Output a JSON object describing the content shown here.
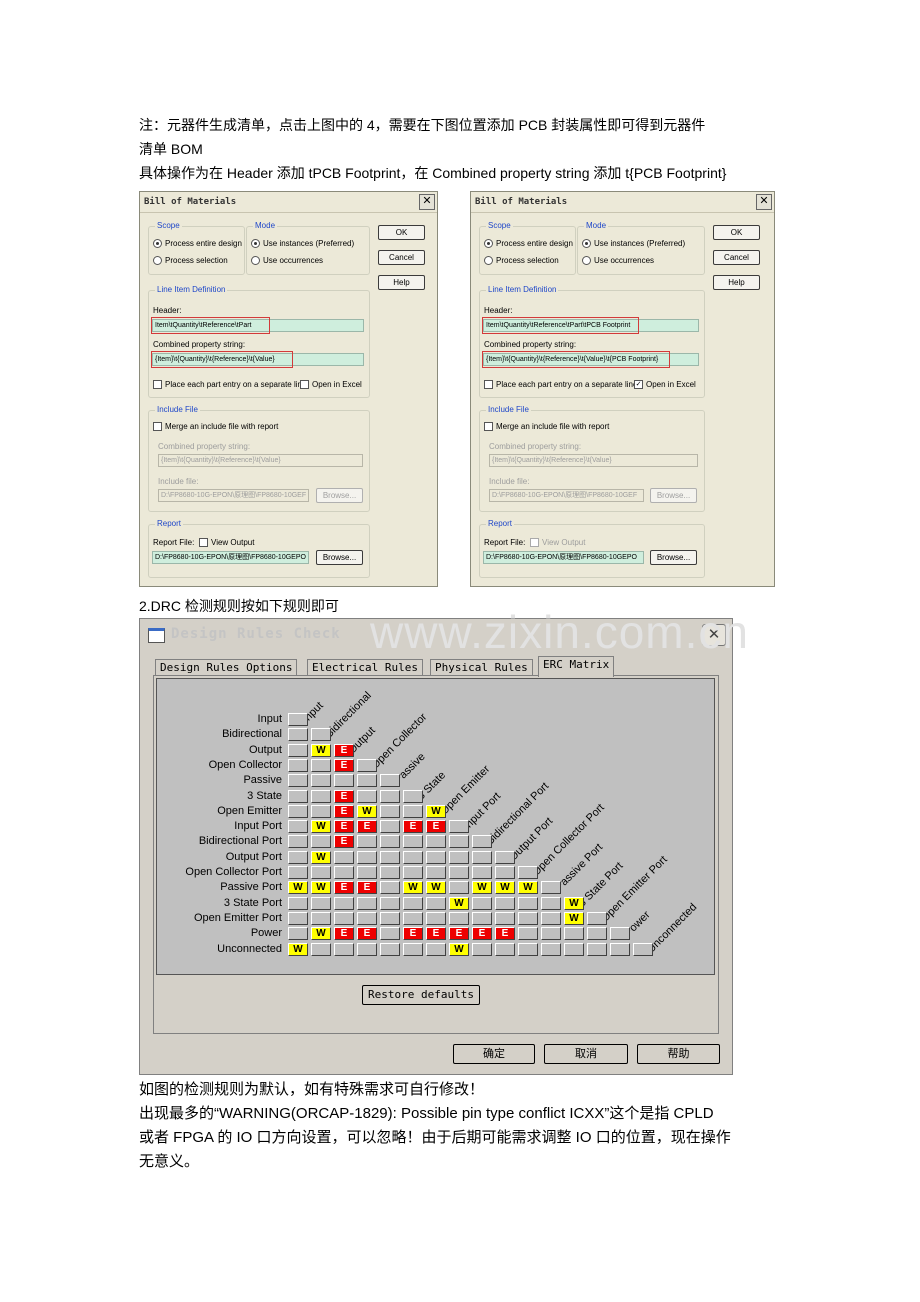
{
  "note_lines": [
    "注：元器件生成清单，点击上图中的 4，需要在下图位置添加 PCB 封装属性即可得到元器件",
    "清单 BOM",
    "具体操作为在 Header 添加 tPCB Footprint，在 Combined property string 添加 t{PCB Footprint}"
  ],
  "bom_left": {
    "title": "Bill of Materials",
    "scope_label": "Scope",
    "scope_opt1": "Process entire design",
    "scope_opt2": "Process selection",
    "mode_label": "Mode",
    "mode_opt1": "Use instances (Preferred)",
    "mode_opt2": "Use occurrences",
    "ok": "OK",
    "cancel": "Cancel",
    "help": "Help",
    "line_item_label": "Line Item Definition",
    "header_label": "Header:",
    "header_value": "Item\\tQuantity\\tReference\\tPart",
    "combined_label": "Combined property string:",
    "combined_value": "{Item}\\t{Quantity}\\t{Reference}\\t{Value}",
    "place_each": "Place each part entry on a separate line",
    "open_excel": "Open in Excel",
    "open_excel_checked": false,
    "include_label": "Include File",
    "merge": "Merge an include file with report",
    "inc_combined_label": "Combined property string:",
    "inc_combined_value": "{Item}\\t{Quantity}\\t{Reference}\\t{Value}",
    "include_file_label": "Include file:",
    "include_file_value": "D:\\FP8680-10G-EPON\\原理图\\FP8680-10GEF",
    "browse_disabled": "Browse...",
    "report_label": "Report",
    "report_file_label": "Report File:",
    "view_output": "View Output",
    "report_file_value": "D:\\FP8680-10G-EPON\\原理图\\FP8680-10GEPO",
    "browse": "Browse..."
  },
  "bom_right": {
    "title": "Bill of Materials",
    "scope_label": "Scope",
    "scope_opt1": "Process entire design",
    "scope_opt2": "Process selection",
    "mode_label": "Mode",
    "mode_opt1": "Use instances (Preferred)",
    "mode_opt2": "Use occurrences",
    "ok": "OK",
    "cancel": "Cancel",
    "help": "Help",
    "line_item_label": "Line Item Definition",
    "header_label": "Header:",
    "header_value": "Item\\tQuantity\\tReference\\tPart\\tPCB Footprint",
    "combined_label": "Combined property string:",
    "combined_value": "{Item}\\t{Quantity}\\t{Reference}\\t{Value}\\t{PCB Footprint}",
    "place_each": "Place each part entry on a separate line",
    "open_excel": "Open in Excel",
    "open_excel_checked": true,
    "include_label": "Include File",
    "merge": "Merge an include file with report",
    "inc_combined_label": "Combined property string:",
    "inc_combined_value": "{Item}\\t{Quantity}\\t{Reference}\\t{Value}",
    "include_file_label": "Include file:",
    "include_file_value": "D:\\FP8680-10G-EPON\\原理图\\FP8680-10GEF",
    "browse_disabled": "Browse...",
    "report_label": "Report",
    "report_file_label": "Report File:",
    "view_output": "View Output",
    "report_file_value": "D:\\FP8680-10G-EPON\\原理图\\FP8680-10GEPO",
    "browse": "Browse..."
  },
  "drc_heading": "2.DRC 检测规则按如下规则即可",
  "watermark": "www.zixin.com.cn",
  "drc": {
    "title": "Design Rules Check",
    "tabs": [
      "Design Rules Options",
      "Electrical Rules",
      "Physical Rules",
      "ERC Matrix"
    ],
    "active_tab": 3,
    "restore": "Restore defaults",
    "ok": "确定",
    "cancel": "取消",
    "help": "帮助",
    "row_labels": [
      "Input",
      "Bidirectional",
      "Output",
      "Open Collector",
      "Passive",
      "3 State",
      "Open Emitter",
      "Input Port",
      "Bidirectional Port",
      "Output Port",
      "Open Collector Port",
      "Passive Port",
      "3 State Port",
      "Open Emitter Port",
      "Power",
      "Unconnected"
    ],
    "col_labels": [
      "Input",
      "Bidirectional",
      "Output",
      "Open Collector",
      "Passive",
      "3 State",
      "Open Emitter",
      "Input Port",
      "Bidirectional Port",
      "Output Port",
      "Open Collector Port",
      "Passive Port",
      "3 State Port",
      "Open Emitter Port",
      "Power",
      "Unconnected"
    ],
    "matrix": [
      [
        ""
      ],
      [
        "",
        ""
      ],
      [
        "",
        "W",
        "E"
      ],
      [
        "",
        "",
        "E",
        ""
      ],
      [
        "",
        "",
        "",
        "",
        ""
      ],
      [
        "",
        "",
        "E",
        "",
        "",
        ""
      ],
      [
        "",
        "",
        "E",
        "W",
        "",
        "",
        "W"
      ],
      [
        "",
        "W",
        "E",
        "E",
        "",
        "E",
        "E",
        ""
      ],
      [
        "",
        "",
        "E",
        "",
        "",
        "",
        "",
        "",
        ""
      ],
      [
        "",
        "W",
        "",
        "",
        "",
        "",
        "",
        "",
        "",
        ""
      ],
      [
        "",
        "",
        "",
        "",
        "",
        "",
        "",
        "",
        "",
        "",
        ""
      ],
      [
        "W",
        "W",
        "E",
        "E",
        "",
        "W",
        "W",
        "",
        "W",
        "W",
        "W",
        ""
      ],
      [
        "",
        "",
        "",
        "",
        "",
        "",
        "",
        "W",
        "",
        "",
        "",
        "",
        "W"
      ],
      [
        "",
        "",
        "",
        "",
        "",
        "",
        "",
        "",
        "",
        "",
        "",
        "",
        "W",
        ""
      ],
      [
        "",
        "W",
        "E",
        "E",
        "",
        "E",
        "E",
        "E",
        "E",
        "E",
        "",
        "",
        "",
        "",
        ""
      ],
      [
        "W",
        "",
        "",
        "",
        "",
        "",
        "",
        "W",
        "",
        "",
        "",
        "",
        "",
        "",
        "",
        ""
      ]
    ],
    "colors": {
      "warning": "#ffff00",
      "error": "#ee0000"
    }
  },
  "bottom_lines": [
    "如图的检测规则为默认，如有特殊需求可自行修改！",
    "出现最多的“WARNING(ORCAP-1829): Possible pin type conflict ICXX”这个是指 CPLD",
    "或者 FPGA 的 IO 口方向设置，可以忽略！由于后期可能需求调整 IO 口的位置，现在操作",
    "无意义。"
  ]
}
